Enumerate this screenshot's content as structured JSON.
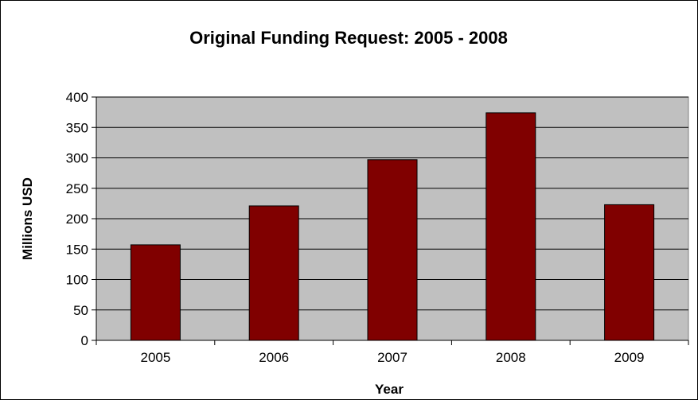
{
  "chart_data": {
    "type": "bar",
    "title": "Original Funding Request: 2005 - 2008",
    "xlabel": "Year",
    "ylabel": "Millions USD",
    "categories": [
      "2005",
      "2006",
      "2007",
      "2008",
      "2009"
    ],
    "values": [
      157,
      221,
      297,
      374,
      223
    ],
    "ylim": [
      0,
      400
    ],
    "yticks": [
      "0",
      "50",
      "100",
      "150",
      "200",
      "250",
      "300",
      "350",
      "400"
    ],
    "grid": true,
    "legend": "none",
    "colors": {
      "bar": "#800000",
      "plot_background": "#c0c0c0",
      "gridline": "#000000"
    }
  }
}
